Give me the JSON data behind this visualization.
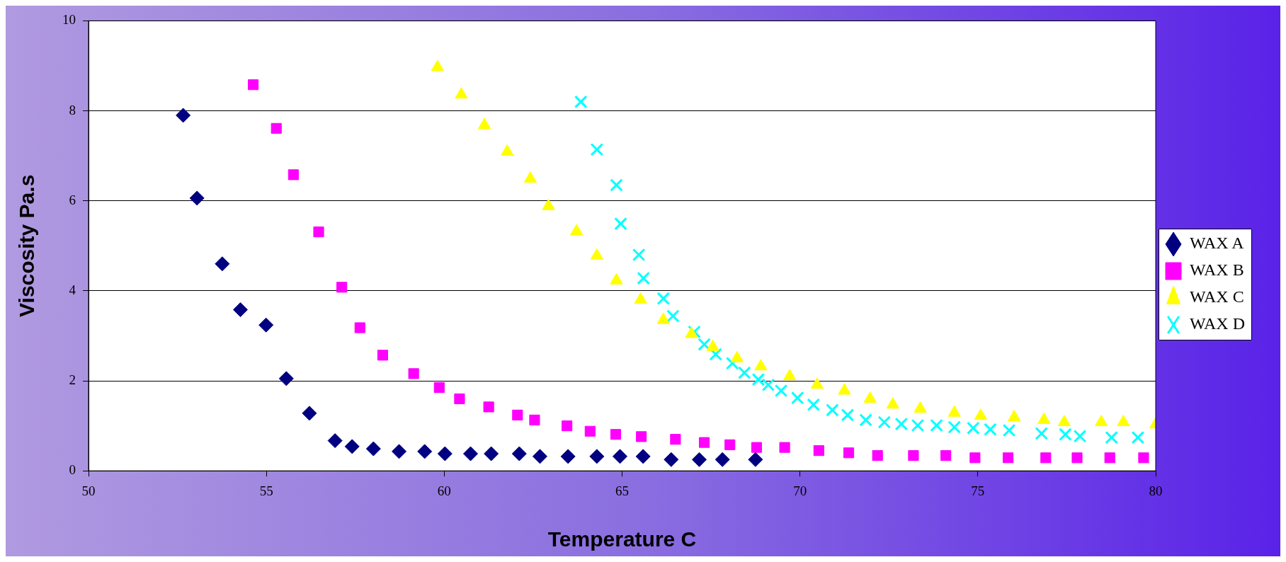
{
  "chart_data": {
    "type": "scatter",
    "xlabel": "Temperature C",
    "ylabel": "Viscosity Pa.s",
    "xlim": [
      50,
      80
    ],
    "xticks": [
      50,
      55,
      60,
      65,
      70,
      75,
      80
    ],
    "ylim": [
      0,
      10
    ],
    "yticks": [
      0,
      2,
      4,
      6,
      8,
      10
    ],
    "grid": "y",
    "legend": "right",
    "series": [
      {
        "name": "WAX A",
        "color": "#000080",
        "marker": "diamond",
        "x": [
          52.66,
          53.05,
          53.76,
          54.27,
          54.99,
          55.56,
          56.21,
          56.93,
          57.41,
          58.01,
          58.73,
          59.45,
          60.02,
          60.74,
          61.32,
          62.11,
          62.69,
          63.48,
          64.29,
          64.94,
          65.59,
          66.38,
          67.17,
          67.82,
          68.75
        ],
        "values": [
          7.9,
          6.06,
          4.6,
          3.58,
          3.24,
          2.05,
          1.28,
          0.67,
          0.54,
          0.49,
          0.43,
          0.43,
          0.38,
          0.38,
          0.38,
          0.38,
          0.32,
          0.32,
          0.32,
          0.32,
          0.32,
          0.25,
          0.25,
          0.25,
          0.25
        ]
      },
      {
        "name": "WAX B",
        "color": "#ff00ff",
        "marker": "square",
        "x": [
          54.63,
          55.28,
          55.76,
          56.47,
          57.12,
          57.63,
          58.27,
          59.14,
          59.86,
          60.43,
          61.25,
          62.06,
          62.54,
          63.45,
          64.1,
          64.82,
          65.54,
          66.5,
          67.31,
          68.03,
          68.78,
          69.57,
          70.53,
          71.37,
          72.18,
          73.19,
          74.1,
          74.92,
          75.85,
          76.91,
          77.79,
          78.71,
          79.66
        ],
        "values": [
          8.58,
          7.61,
          6.58,
          5.31,
          4.08,
          3.18,
          2.57,
          2.16,
          1.85,
          1.6,
          1.42,
          1.24,
          1.13,
          1.0,
          0.88,
          0.81,
          0.76,
          0.7,
          0.63,
          0.58,
          0.52,
          0.52,
          0.45,
          0.4,
          0.34,
          0.34,
          0.34,
          0.29,
          0.29,
          0.29,
          0.29,
          0.29,
          0.29
        ]
      },
      {
        "name": "WAX C",
        "color": "#ffff00",
        "marker": "triangle",
        "x": [
          59.81,
          60.48,
          61.13,
          61.77,
          62.42,
          62.93,
          63.72,
          64.29,
          64.84,
          65.52,
          66.16,
          66.95,
          67.55,
          68.23,
          68.9,
          69.71,
          70.48,
          71.25,
          71.97,
          72.61,
          73.38,
          74.34,
          75.08,
          76.02,
          76.86,
          77.43,
          78.47,
          79.09,
          80
        ],
        "values": [
          8.97,
          8.36,
          7.68,
          7.09,
          6.49,
          5.88,
          5.32,
          4.78,
          4.23,
          3.8,
          3.35,
          3.04,
          2.75,
          2.5,
          2.32,
          2.1,
          1.91,
          1.78,
          1.6,
          1.47,
          1.38,
          1.29,
          1.22,
          1.19,
          1.13,
          1.08,
          1.08,
          1.08,
          1.03
        ]
      },
      {
        "name": "WAX D",
        "color": "#00ffff",
        "marker": "cross",
        "x": [
          63.84,
          64.29,
          64.84,
          64.96,
          65.47,
          65.6,
          66.16,
          66.43,
          67.03,
          67.31,
          67.63,
          68.1,
          68.44,
          68.83,
          69.11,
          69.47,
          69.93,
          70.38,
          70.91,
          71.34,
          71.85,
          72.37,
          72.85,
          73.31,
          73.84,
          74.34,
          74.87,
          75.35,
          75.88,
          76.79,
          77.46,
          77.87,
          78.76,
          79.5
        ],
        "values": [
          8.2,
          7.14,
          6.35,
          5.49,
          4.8,
          4.28,
          3.83,
          3.44,
          3.09,
          2.81,
          2.59,
          2.39,
          2.18,
          2.03,
          1.91,
          1.78,
          1.62,
          1.47,
          1.35,
          1.24,
          1.13,
          1.08,
          1.04,
          1.01,
          1.01,
          0.97,
          0.95,
          0.92,
          0.9,
          0.83,
          0.81,
          0.77,
          0.74,
          0.74
        ]
      }
    ]
  }
}
